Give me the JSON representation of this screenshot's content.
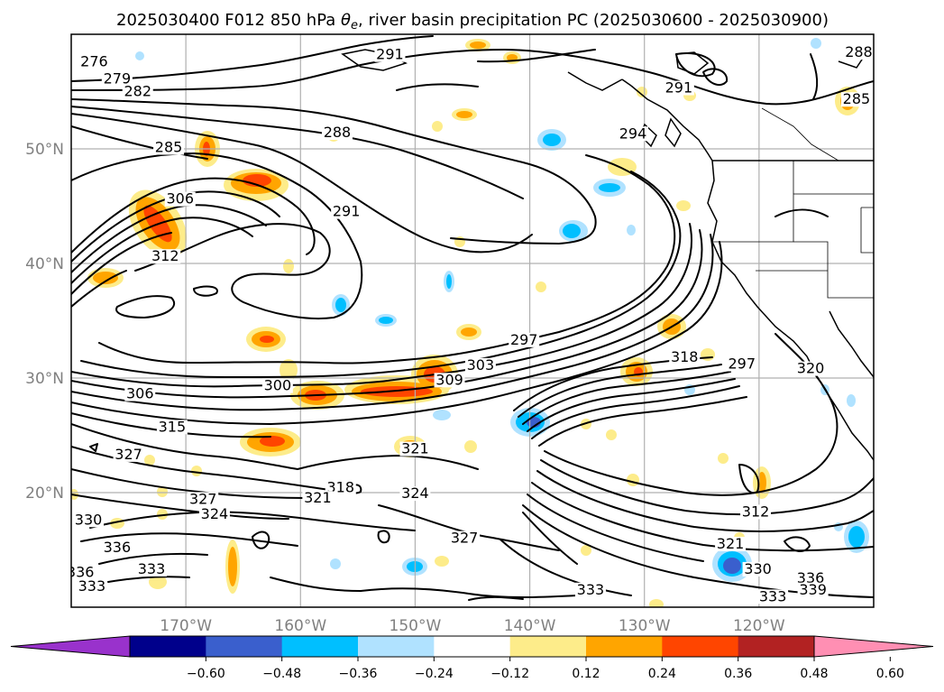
{
  "title_prefix": "2025030400 F012 850 hPa ",
  "title_symbol": "θ",
  "title_subscript": "e",
  "title_suffix": ", river basin precipitation PC (2025030600 - 2025030900)",
  "map": {
    "lon_range": [
      -180,
      -110
    ],
    "lat_range": [
      10,
      60
    ],
    "lon_ticks": [
      {
        "lon": -170,
        "label": "170°W"
      },
      {
        "lon": -160,
        "label": "160°W"
      },
      {
        "lon": -150,
        "label": "150°W"
      },
      {
        "lon": -140,
        "label": "140°W"
      },
      {
        "lon": -130,
        "label": "130°W"
      },
      {
        "lon": -120,
        "label": "120°W"
      }
    ],
    "lat_ticks": [
      {
        "lat": 20,
        "label": "20°N"
      },
      {
        "lat": 30,
        "label": "30°N"
      },
      {
        "lat": 40,
        "label": "40°N"
      },
      {
        "lat": 50,
        "label": "50°N"
      }
    ],
    "contour_labels": [
      {
        "text": "276",
        "lon": -178.0,
        "lat": 57.3
      },
      {
        "text": "279",
        "lon": -176.0,
        "lat": 55.8
      },
      {
        "text": "282",
        "lon": -174.2,
        "lat": 54.7
      },
      {
        "text": "285",
        "lon": -171.5,
        "lat": 49.8
      },
      {
        "text": "288",
        "lon": -156.8,
        "lat": 51.1
      },
      {
        "text": "291",
        "lon": -152.2,
        "lat": 57.9
      },
      {
        "text": "291",
        "lon": -127.0,
        "lat": 55.0
      },
      {
        "text": "291",
        "lon": -156.0,
        "lat": 44.2
      },
      {
        "text": "288",
        "lon": -111.3,
        "lat": 58.1
      },
      {
        "text": "285",
        "lon": -111.5,
        "lat": 54.0
      },
      {
        "text": "294",
        "lon": -131.0,
        "lat": 51.0
      },
      {
        "text": "297",
        "lon": -140.5,
        "lat": 33.0
      },
      {
        "text": "297",
        "lon": -121.5,
        "lat": 30.9
      },
      {
        "text": "300",
        "lon": -162.0,
        "lat": 29.0
      },
      {
        "text": "303",
        "lon": -144.3,
        "lat": 30.8
      },
      {
        "text": "309",
        "lon": -147.0,
        "lat": 29.5
      },
      {
        "text": "306",
        "lon": -170.5,
        "lat": 45.3
      },
      {
        "text": "306",
        "lon": -174.0,
        "lat": 28.3
      },
      {
        "text": "312",
        "lon": -171.8,
        "lat": 40.3
      },
      {
        "text": "315",
        "lon": -171.2,
        "lat": 25.4
      },
      {
        "text": "318",
        "lon": -126.5,
        "lat": 31.5
      },
      {
        "text": "320",
        "lon": -115.5,
        "lat": 30.5
      },
      {
        "text": "327",
        "lon": -175.0,
        "lat": 23.0
      },
      {
        "text": "327",
        "lon": -168.5,
        "lat": 19.1
      },
      {
        "text": "324",
        "lon": -167.5,
        "lat": 17.8
      },
      {
        "text": "318",
        "lon": -156.5,
        "lat": 20.1
      },
      {
        "text": "321",
        "lon": -158.5,
        "lat": 19.2
      },
      {
        "text": "321",
        "lon": -150.0,
        "lat": 23.5
      },
      {
        "text": "324",
        "lon": -150.0,
        "lat": 19.6
      },
      {
        "text": "327",
        "lon": -145.7,
        "lat": 15.7
      },
      {
        "text": "330",
        "lon": -178.5,
        "lat": 17.3
      },
      {
        "text": "336",
        "lon": -176.0,
        "lat": 14.9
      },
      {
        "text": "333",
        "lon": -173.0,
        "lat": 13.0
      },
      {
        "text": "336",
        "lon": -179.2,
        "lat": 12.7
      },
      {
        "text": "333",
        "lon": -178.2,
        "lat": 11.5
      },
      {
        "text": "333",
        "lon": -134.7,
        "lat": 11.2
      },
      {
        "text": "330",
        "lon": -120.1,
        "lat": 13.0
      },
      {
        "text": "333",
        "lon": -118.8,
        "lat": 10.6
      },
      {
        "text": "312",
        "lon": -120.3,
        "lat": 18.0
      },
      {
        "text": "321",
        "lon": -122.5,
        "lat": 15.2
      },
      {
        "text": "336",
        "lon": -115.5,
        "lat": 12.2
      },
      {
        "text": "339",
        "lon": -115.3,
        "lat": 11.2
      }
    ]
  },
  "colorbar": {
    "colors": [
      "#9932cc",
      "#00008b",
      "#3a5fcd",
      "#00bfff",
      "#b0e2ff",
      "#ffffff",
      "#fdec8a",
      "#ffa500",
      "#ff4500",
      "#b22222",
      "#ff8fb3"
    ],
    "tick_labels": [
      "−0.60",
      "−0.48",
      "−0.36",
      "−0.24",
      "−0.12",
      "0.12",
      "0.24",
      "0.36",
      "0.48",
      "0.60"
    ]
  }
}
